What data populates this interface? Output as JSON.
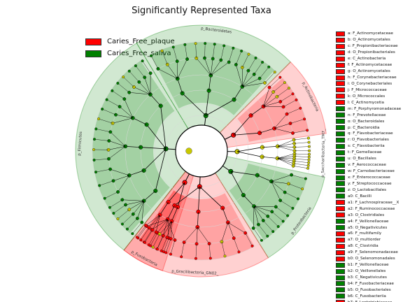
{
  "chart_data": {
    "type": "cladogram",
    "title": "Significantly Represented Taxa",
    "legend": [
      {
        "name": "Caries_Free_plaque",
        "color": "#ff0000"
      },
      {
        "name": "Caries_Free_saliva",
        "color": "#008000"
      }
    ],
    "clades": [
      {
        "label": "p_Bacteroidetes",
        "group": "Caries_Free_saliva",
        "start": -121,
        "end": -45
      },
      {
        "label": "p_Actinobacteria",
        "group": "Caries_Free_plaque",
        "start": -45,
        "end": -8
      },
      {
        "label": "p_Saccharibacteria_TM7_",
        "group": "none",
        "start": -8,
        "end": 10
      },
      {
        "label": "p_Proteobacteria",
        "group": "Caries_Free_saliva",
        "start": 12,
        "end": 58
      },
      {
        "label": "p_Gracilibacteria_GN02_",
        "group": "Caries_Free_plaque",
        "start": 58,
        "end": 128
      },
      {
        "label": "p_Fusobacteria",
        "group": "Caries_Free_plaque",
        "start": 108,
        "end": 128
      },
      {
        "label": "p_Firmicutes",
        "group": "Caries_Free_saliva",
        "start": 128,
        "end": 239
      }
    ],
    "taxa": [
      {
        "letter": "a",
        "name": "F_Actinomycetaceae",
        "group": "Caries_Free_plaque"
      },
      {
        "letter": "b",
        "name": "O_Actinomycetales",
        "group": "Caries_Free_plaque"
      },
      {
        "letter": "c",
        "name": "F_Propionibacteriaceae",
        "group": "Caries_Free_plaque"
      },
      {
        "letter": "d",
        "name": "O_Propionibacteriales",
        "group": "Caries_Free_plaque"
      },
      {
        "letter": "e",
        "name": "C_Actinobacteria",
        "group": "Caries_Free_plaque"
      },
      {
        "letter": "f",
        "name": "F_Actinomycetaceae",
        "group": "Caries_Free_plaque"
      },
      {
        "letter": "g",
        "name": "O_Actinomycetales",
        "group": "Caries_Free_plaque"
      },
      {
        "letter": "h",
        "name": "F_Corynebacteriaceae",
        "group": "Caries_Free_plaque"
      },
      {
        "letter": "i",
        "name": "O_Corynebacteriales",
        "group": "Caries_Free_plaque"
      },
      {
        "letter": "j",
        "name": "F_Micrococcaceae",
        "group": "Caries_Free_plaque"
      },
      {
        "letter": "k",
        "name": "O_Micrococcales",
        "group": "Caries_Free_plaque"
      },
      {
        "letter": "l",
        "name": "C_Actinomycetia",
        "group": "Caries_Free_plaque"
      },
      {
        "letter": "m",
        "name": "F_Porphyromonadaceae",
        "group": "Caries_Free_saliva"
      },
      {
        "letter": "n",
        "name": "F_Prevotellaceae",
        "group": "Caries_Free_saliva"
      },
      {
        "letter": "o",
        "name": "O_Bacteroidales",
        "group": "Caries_Free_saliva"
      },
      {
        "letter": "p",
        "name": "C_Bacteroidia",
        "group": "Caries_Free_saliva"
      },
      {
        "letter": "q",
        "name": "F_Flavobacteriaceae",
        "group": "Caries_Free_saliva"
      },
      {
        "letter": "r",
        "name": "O_Flavobacteriales",
        "group": "Caries_Free_saliva"
      },
      {
        "letter": "s",
        "name": "C_Flavobacteriia",
        "group": "Caries_Free_saliva"
      },
      {
        "letter": "t",
        "name": "F_Gemellaceae",
        "group": "Caries_Free_saliva"
      },
      {
        "letter": "u",
        "name": "O_Bacillales",
        "group": "Caries_Free_saliva"
      },
      {
        "letter": "v",
        "name": "F_Aerococcaceae",
        "group": "Caries_Free_saliva"
      },
      {
        "letter": "w",
        "name": "F_Carnobacteriaceae",
        "group": "Caries_Free_saliva"
      },
      {
        "letter": "x",
        "name": "F_Enterococcaceae",
        "group": "Caries_Free_saliva"
      },
      {
        "letter": "y",
        "name": "F_Streptococcaceae",
        "group": "Caries_Free_saliva"
      },
      {
        "letter": "z",
        "name": "O_Lactobacillales",
        "group": "Caries_Free_saliva"
      },
      {
        "letter": "a0",
        "name": "C_Bacilli",
        "group": "Caries_Free_saliva"
      },
      {
        "letter": "a1",
        "name": "F_Lachnospiraceae__X",
        "group": "Caries_Free_plaque"
      },
      {
        "letter": "a2",
        "name": "F_Ruminococcaceae",
        "group": "Caries_Free_plaque"
      },
      {
        "letter": "a3",
        "name": "O_Clostridiales",
        "group": "Caries_Free_plaque"
      },
      {
        "letter": "a4",
        "name": "F_Veillonellaceae",
        "group": "Caries_Free_saliva"
      },
      {
        "letter": "a5",
        "name": "O_Negativicutes",
        "group": "Caries_Free_saliva"
      },
      {
        "letter": "a6",
        "name": "F_multifamily",
        "group": "Caries_Free_plaque"
      },
      {
        "letter": "a7",
        "name": "O_multiorder",
        "group": "Caries_Free_plaque"
      },
      {
        "letter": "a8",
        "name": "C_Clostridia",
        "group": "Caries_Free_plaque"
      },
      {
        "letter": "a9",
        "name": "F_Selenomonadaceae",
        "group": "Caries_Free_plaque"
      },
      {
        "letter": "b0",
        "name": "O_Selenomonadales",
        "group": "Caries_Free_plaque"
      },
      {
        "letter": "b1",
        "name": "F_Veillonellaceae",
        "group": "Caries_Free_saliva"
      },
      {
        "letter": "b2",
        "name": "O_Veillonellales",
        "group": "Caries_Free_saliva"
      },
      {
        "letter": "b3",
        "name": "C_Negativicutes",
        "group": "Caries_Free_saliva"
      },
      {
        "letter": "b4",
        "name": "F_Fusobacteriaceae",
        "group": "Caries_Free_saliva"
      },
      {
        "letter": "b5",
        "name": "O_Fusobacteriales",
        "group": "Caries_Free_saliva"
      },
      {
        "letter": "b6",
        "name": "C_Fusobacteriia",
        "group": "Caries_Free_saliva"
      },
      {
        "letter": "b7",
        "name": "F_Leptotrichiaceae",
        "group": "Caries_Free_plaque"
      }
    ]
  }
}
